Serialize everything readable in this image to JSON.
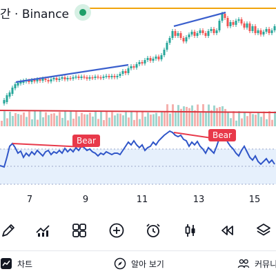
{
  "header": {
    "title": "간 · Binance",
    "live_indicator_color": "#1e9e68"
  },
  "chart": {
    "x_axis_labels": [
      "7",
      "9",
      "11",
      "13",
      "15"
    ],
    "divergence_labels": [
      "Bear",
      "Bear"
    ],
    "colors": {
      "up": "#26a69a",
      "down": "#ef5350",
      "trendline": "#3a5fcd",
      "bear": "#e8394a",
      "rsi_line": "#2f55c8",
      "rsi_band": "#e6f0fc",
      "reference_line_top": "#f0a30a",
      "volume_line": "#d9343f"
    }
  },
  "toolbar": {
    "items": [
      "draw-icon",
      "indicators-icon",
      "layout-grid-icon",
      "add-icon",
      "alert-clock-icon",
      "candle-style-icon",
      "replay-icon",
      "layers-icon"
    ]
  },
  "bottom_nav": {
    "chart_label": "차트",
    "explore_label": "알아 보기",
    "community_label": "커뮤니"
  }
}
